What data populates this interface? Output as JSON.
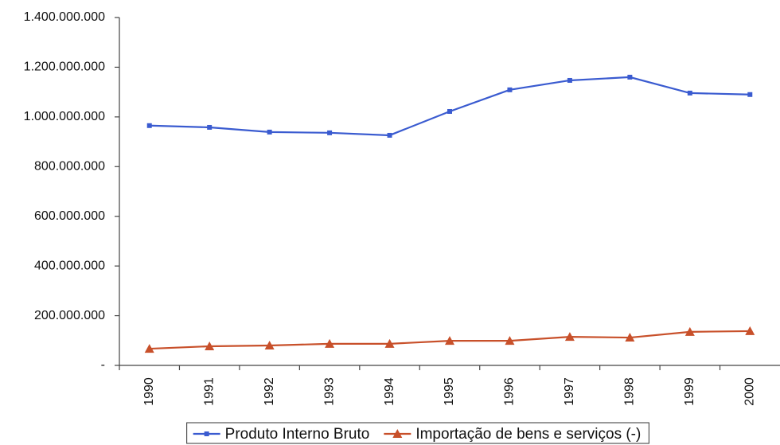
{
  "chart_data": {
    "type": "line",
    "categories": [
      "1990",
      "1991",
      "1992",
      "1993",
      "1994",
      "1995",
      "1996",
      "1997",
      "1998",
      "1999",
      "2000"
    ],
    "series": [
      {
        "name": "Produto Interno Bruto",
        "color": "#3a5bd0",
        "marker": "square",
        "values": [
          965000000,
          958000000,
          939000000,
          936000000,
          926000000,
          1022000000,
          1109000000,
          1147000000,
          1160000000,
          1096000000,
          1090000000
        ]
      },
      {
        "name": "Importação de bens e serviços (-)",
        "color": "#c8502a",
        "marker": "triangle",
        "values": [
          67000000,
          77000000,
          80000000,
          87000000,
          87000000,
          99000000,
          99000000,
          115000000,
          112000000,
          135000000,
          138000000
        ]
      }
    ],
    "ylim": [
      0,
      1400000000
    ],
    "yticks": [
      {
        "value": 0,
        "label": "-"
      },
      {
        "value": 200000000,
        "label": "200.000.000"
      },
      {
        "value": 400000000,
        "label": "400.000.000"
      },
      {
        "value": 600000000,
        "label": "600.000.000"
      },
      {
        "value": 800000000,
        "label": "800.000.000"
      },
      {
        "value": 1000000000,
        "label": "1.000.000.000"
      },
      {
        "value": 1200000000,
        "label": "1.200.000.000"
      },
      {
        "value": 1400000000,
        "label": "1.400.000.000"
      }
    ],
    "grid": false,
    "legend": "bottom"
  }
}
